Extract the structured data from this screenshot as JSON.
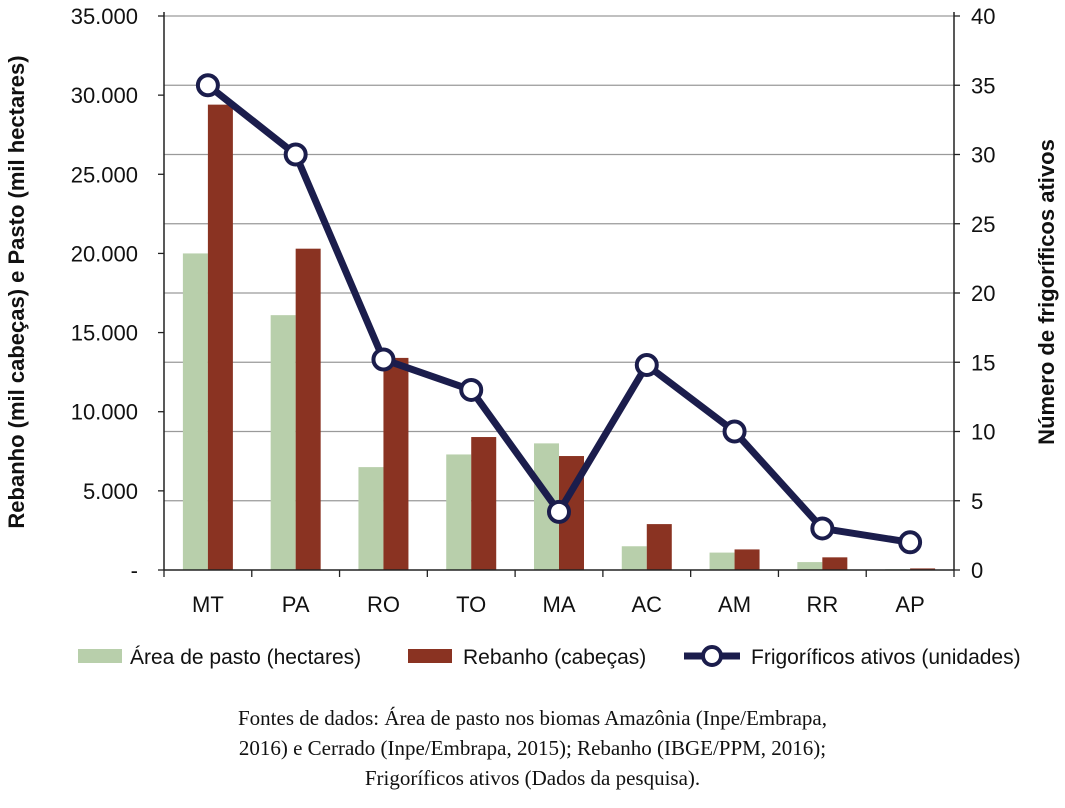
{
  "chart_data": {
    "type": "bar",
    "categories": [
      "MT",
      "PA",
      "RO",
      "TO",
      "MA",
      "AC",
      "AM",
      "RR",
      "AP"
    ],
    "series": [
      {
        "name": "Área de pasto (hectares)",
        "axis": "left",
        "color": "#b8cfab",
        "values": [
          20000,
          16100,
          6500,
          7300,
          8000,
          1500,
          1100,
          500,
          50
        ]
      },
      {
        "name": "Rebanho (cabeças)",
        "axis": "left",
        "color": "#8a3322",
        "values": [
          29400,
          20300,
          13400,
          8400,
          7200,
          2900,
          1300,
          800,
          100
        ]
      },
      {
        "name": "Frigoríficos ativos (unidades)",
        "axis": "right",
        "type": "line",
        "color": "#1b1d4c",
        "values": [
          35,
          30,
          15.2,
          13,
          4.2,
          14.8,
          10,
          3,
          2
        ]
      }
    ],
    "left_axis": {
      "label": "Rebanho (mil cabeças) e Pasto (mil hectares)",
      "ylim": [
        0,
        35000
      ],
      "ticks": [
        0,
        5000,
        10000,
        15000,
        20000,
        25000,
        30000,
        35000
      ],
      "tick_labels": [
        "-",
        "5.000",
        "10.000",
        "15.000",
        "20.000",
        "25.000",
        "30.000",
        "35.000"
      ]
    },
    "right_axis": {
      "label": "Número de frigoríficos ativos",
      "ylim": [
        0,
        40
      ],
      "ticks": [
        0,
        5,
        10,
        15,
        20,
        25,
        30,
        35,
        40
      ],
      "tick_labels": [
        "0",
        "5",
        "10",
        "15",
        "20",
        "25",
        "30",
        "35",
        "40"
      ]
    },
    "grid": true,
    "legend": "bottom"
  },
  "source_lines": [
    "Fontes de dados: Área de pasto nos biomas Amazônia (Inpe/Embrapa,",
    "2016) e Cerrado (Inpe/Embrapa, 2015); Rebanho (IBGE/PPM, 2016);",
    "Frigoríficos ativos (Dados da pesquisa)."
  ]
}
